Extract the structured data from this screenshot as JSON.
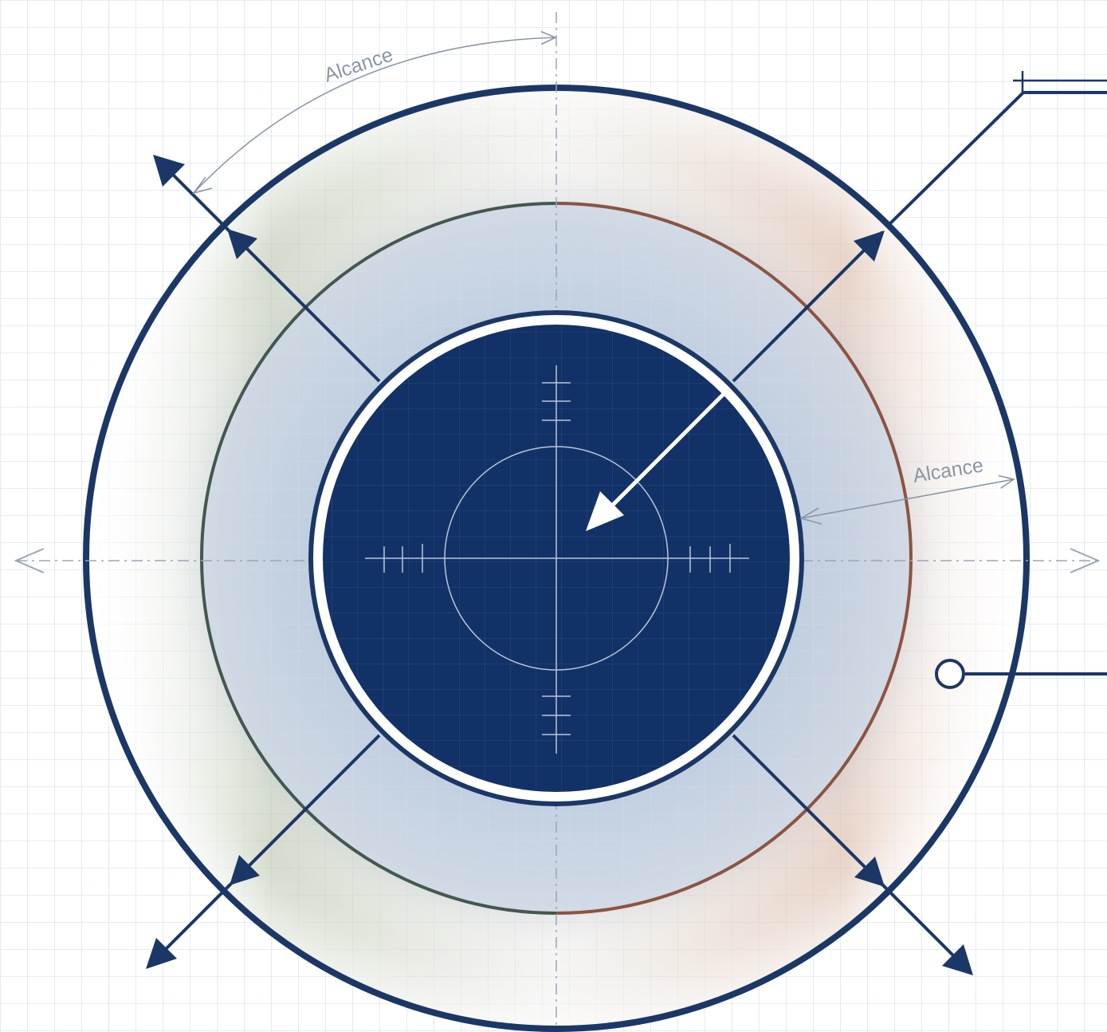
{
  "diagram": {
    "labels": {
      "top_arc": "Alcance",
      "right_span": "Alcance"
    },
    "colors": {
      "navy": "#1b3766",
      "core_fill": "#123267",
      "mid_band": "#c6d4e4",
      "green_tint": "#8fa07a",
      "copper_tint": "#bf8c6e",
      "copper_ring": "#8c5442",
      "green_ring": "#43584f",
      "grid_line": "#d4dde8",
      "annotation": "#8a96a6"
    }
  }
}
